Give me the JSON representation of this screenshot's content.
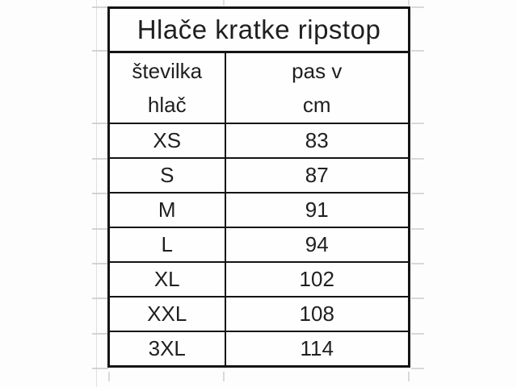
{
  "colors": {
    "border": "#141414",
    "text": "#1f1f1f",
    "gridline": "#c9c9c9",
    "background": "#fdfdfd"
  },
  "table": {
    "title": "Hlače kratke ripstop",
    "headers": {
      "size_column": "številka\nhlač",
      "waist_column": "pas v\ncm"
    },
    "rows": [
      {
        "size": "XS",
        "waist_cm": "83"
      },
      {
        "size": "S",
        "waist_cm": "87"
      },
      {
        "size": "M",
        "waist_cm": "91"
      },
      {
        "size": "L",
        "waist_cm": "94"
      },
      {
        "size": "XL",
        "waist_cm": "102"
      },
      {
        "size": "XXL",
        "waist_cm": "108"
      },
      {
        "size": "3XL",
        "waist_cm": "114"
      }
    ]
  }
}
